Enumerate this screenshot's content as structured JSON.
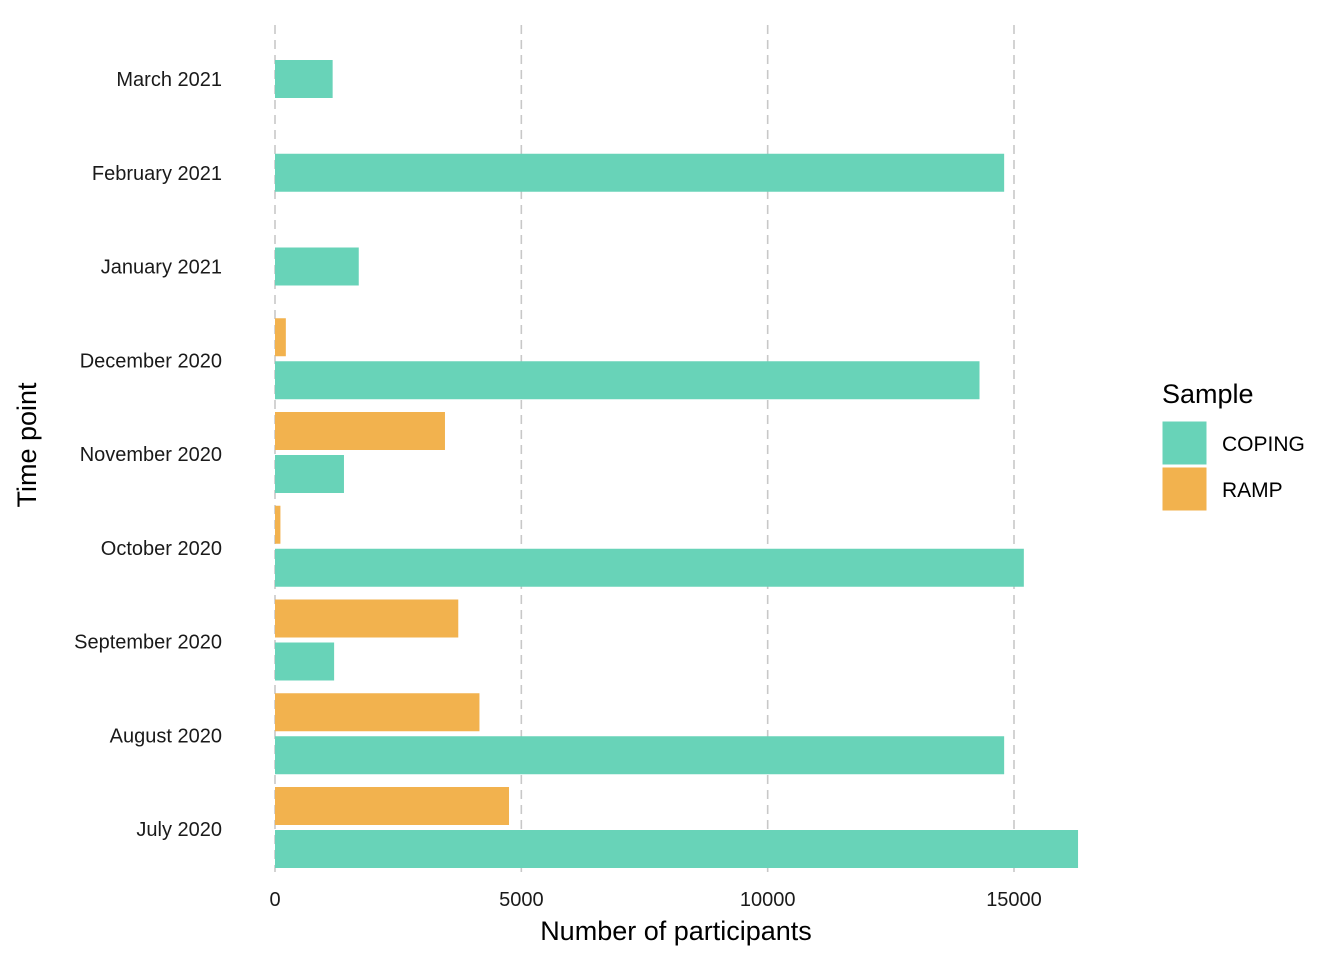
{
  "chart_data": {
    "type": "bar",
    "orientation": "horizontal",
    "categories": [
      "July 2020",
      "August 2020",
      "September 2020",
      "October 2020",
      "November 2020",
      "December 2020",
      "January 2021",
      "February 2021",
      "March 2021"
    ],
    "series": [
      {
        "name": "COPING",
        "color": "#68d3b8",
        "values": [
          16300,
          14800,
          1200,
          15200,
          1400,
          14300,
          1700,
          14800,
          1170
        ]
      },
      {
        "name": "RAMP",
        "color": "#f2b24e",
        "values": [
          4750,
          4150,
          3720,
          110,
          3450,
          220,
          null,
          null,
          null
        ]
      }
    ],
    "xlabel": "Number of participants",
    "ylabel": "Time point",
    "xlim": [
      0,
      16300
    ],
    "xticks": [
      0,
      5000,
      10000,
      15000
    ],
    "grid": "vertical dashed",
    "legend": {
      "title": "Sample",
      "position": "right"
    }
  }
}
